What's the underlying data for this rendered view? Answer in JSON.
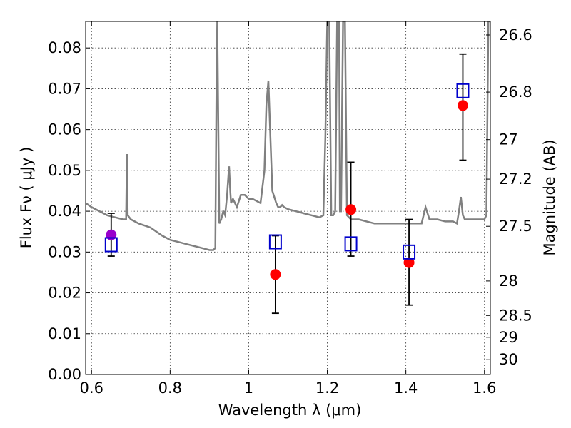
{
  "chart_data": {
    "type": "scatter",
    "title": "",
    "xlabel": "Wavelength  λ (μm)",
    "ylabel": "Flux  Fν  ( μJy )",
    "y2label": "Magnitude (AB)",
    "xlim": [
      0.585,
      1.615
    ],
    "ylim": [
      0.0,
      0.0865
    ],
    "grid": true,
    "x_ticks": [
      0.6,
      0.8,
      1.0,
      1.2,
      1.4,
      1.6
    ],
    "x_tick_labels": [
      "0.6",
      "0.8",
      "1",
      "1.2",
      "1.4",
      "1.6"
    ],
    "y_ticks": [
      0.0,
      0.01,
      0.02,
      0.03,
      0.04,
      0.05,
      0.06,
      0.07,
      0.08
    ],
    "y_tick_labels": [
      "0.00",
      "0.01",
      "0.02",
      "0.03",
      "0.04",
      "0.05",
      "0.06",
      "0.07",
      "0.08"
    ],
    "y2_ticks": [
      26.6,
      26.8,
      27.0,
      27.2,
      27.5,
      28.0,
      28.5,
      29.0,
      30.0
    ],
    "y2_tick_labels": [
      "26.6",
      "26.8",
      "27",
      "27.2",
      "27.5",
      "28",
      "28.5",
      "29",
      "30"
    ],
    "series": [
      {
        "type": "line",
        "color": "#808080",
        "x": [
          0.585,
          0.6,
          0.62,
          0.64,
          0.66,
          0.68,
          0.688,
          0.69,
          0.692,
          0.7,
          0.72,
          0.75,
          0.78,
          0.8,
          0.84,
          0.88,
          0.9,
          0.91,
          0.915,
          0.918,
          0.92,
          0.925,
          0.93,
          0.935,
          0.94,
          0.945,
          0.95,
          0.953,
          0.955,
          0.96,
          0.965,
          0.97,
          0.98,
          0.99,
          1.0,
          1.01,
          1.02,
          1.03,
          1.04,
          1.045,
          1.05,
          1.06,
          1.07,
          1.075,
          1.08,
          1.085,
          1.09,
          1.1,
          1.12,
          1.14,
          1.16,
          1.18,
          1.19,
          1.195,
          1.2,
          1.205,
          1.21,
          1.215,
          1.22,
          1.225,
          1.23,
          1.232,
          1.235,
          1.24,
          1.245,
          1.25,
          1.26,
          1.28,
          1.3,
          1.32,
          1.34,
          1.36,
          1.38,
          1.4,
          1.42,
          1.44,
          1.445,
          1.45,
          1.46,
          1.48,
          1.5,
          1.52,
          1.53,
          1.535,
          1.54,
          1.545,
          1.55,
          1.56,
          1.57,
          1.58,
          1.59,
          1.6,
          1.605,
          1.61,
          1.615
        ],
        "y": [
          0.042,
          0.041,
          0.04,
          0.039,
          0.0385,
          0.038,
          0.038,
          0.054,
          0.039,
          0.038,
          0.037,
          0.036,
          0.034,
          0.033,
          0.032,
          0.031,
          0.0305,
          0.0305,
          0.031,
          0.07,
          0.0865,
          0.037,
          0.038,
          0.04,
          0.039,
          0.044,
          0.051,
          0.045,
          0.042,
          0.043,
          0.042,
          0.041,
          0.044,
          0.044,
          0.043,
          0.043,
          0.0425,
          0.042,
          0.05,
          0.066,
          0.072,
          0.045,
          0.042,
          0.041,
          0.041,
          0.0415,
          0.041,
          0.0405,
          0.04,
          0.0395,
          0.039,
          0.0385,
          0.039,
          0.058,
          0.0865,
          0.0865,
          0.039,
          0.039,
          0.04,
          0.0865,
          0.0865,
          0.04,
          0.04,
          0.0865,
          0.0865,
          0.039,
          0.038,
          0.038,
          0.0375,
          0.037,
          0.037,
          0.037,
          0.037,
          0.037,
          0.037,
          0.037,
          0.039,
          0.041,
          0.038,
          0.038,
          0.0375,
          0.0375,
          0.037,
          0.04,
          0.0435,
          0.039,
          0.038,
          0.038,
          0.038,
          0.038,
          0.038,
          0.038,
          0.039,
          0.0865,
          0.0865
        ]
      },
      {
        "type": "errorbar",
        "color": "#000000",
        "x": [
          0.65,
          1.068,
          1.26,
          1.408,
          1.545
        ],
        "y": [
          0.034,
          0.0245,
          0.0405,
          0.0275,
          0.0655
        ],
        "yerr_low": [
          0.005,
          0.0095,
          0.0115,
          0.0105,
          0.013
        ],
        "yerr_high": [
          0.0055,
          0.0095,
          0.0115,
          0.0105,
          0.013
        ]
      },
      {
        "type": "scatter",
        "marker": "circle",
        "x": [
          0.65,
          1.068,
          1.26,
          1.408,
          1.545
        ],
        "y": [
          0.0342,
          0.0245,
          0.0404,
          0.0274,
          0.0659
        ],
        "colors": [
          "#9900cc",
          "#ff0000",
          "#ff0000",
          "#ff0000",
          "#ff0000"
        ]
      },
      {
        "type": "scatter",
        "marker": "open-square",
        "color": "#0000cc",
        "x": [
          0.65,
          1.068,
          1.26,
          1.408,
          1.545
        ],
        "y": [
          0.0318,
          0.0325,
          0.032,
          0.03,
          0.0695
        ]
      }
    ]
  }
}
